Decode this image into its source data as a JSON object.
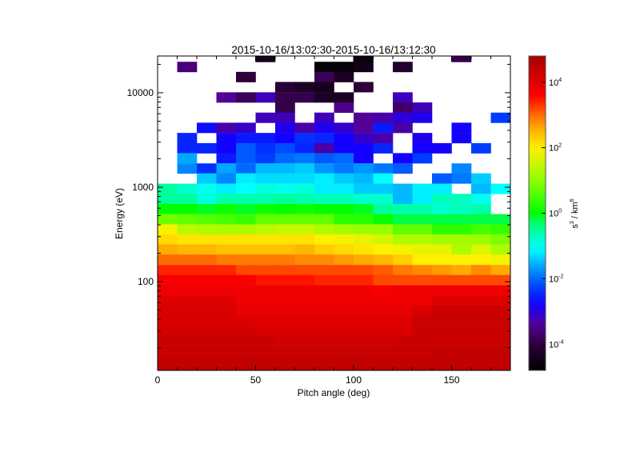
{
  "chart_data": {
    "type": "heatmap",
    "title": "2015-10-16/13:02:30-2015-10-16/13:12:30",
    "xlabel": "Pitch angle (deg)",
    "ylabel": "Energy (eV)",
    "xlim": [
      0,
      180
    ],
    "ylim": [
      11.5,
      24500
    ],
    "yscale": "log",
    "x_ticks": [
      "0",
      "50",
      "100",
      "150"
    ],
    "y_ticks": [
      "100",
      "1000",
      "10000"
    ],
    "pitch_angle_bins_deg": [
      5,
      15,
      25,
      35,
      45,
      55,
      65,
      75,
      85,
      95,
      105,
      115,
      125,
      135,
      145,
      155,
      165,
      175
    ],
    "energy_bins_eV": [
      24000,
      18800,
      14700,
      11500,
      8940,
      6980,
      5450,
      4260,
      3320,
      2590,
      2030,
      1580,
      1240,
      964,
      753,
      588,
      459,
      358,
      280,
      219,
      171,
      133,
      104,
      81,
      63.4,
      49.5,
      38.7,
      30.2,
      23.6,
      18.4,
      14.4,
      11.2
    ],
    "colorbar": {
      "label_base": "s",
      "label_exp1": "3",
      "label_mid": " / km",
      "label_exp2": "6",
      "scale": "log",
      "range_log10": [
        -4.8,
        4.8
      ],
      "ticks": [
        {
          "base": "10",
          "exp": "4",
          "log10": 4
        },
        {
          "base": "10",
          "exp": "2",
          "log10": 2
        },
        {
          "base": "10",
          "exp": "0",
          "log10": 0
        },
        {
          "base": "10",
          "exp": "-2",
          "log10": -2
        },
        {
          "base": "10",
          "exp": "-4",
          "log10": -4
        }
      ],
      "colormap": "rainbow (black-purple-blue-cyan-green-yellow-red-darkred)"
    },
    "empty_color": "#ffffff",
    "values_log10": [
      [
        null,
        null,
        null,
        null,
        null,
        -4.4,
        null,
        null,
        null,
        null,
        -4.6,
        null,
        null,
        null,
        null,
        -3.9,
        null,
        null
      ],
      [
        null,
        -3.6,
        null,
        null,
        null,
        null,
        null,
        null,
        -4.7,
        -4.7,
        -4.5,
        null,
        -4.2,
        null,
        null,
        null,
        null,
        null
      ],
      [
        null,
        null,
        null,
        null,
        -4.0,
        null,
        null,
        null,
        -3.8,
        -4.3,
        null,
        null,
        null,
        null,
        null,
        null,
        null,
        null
      ],
      [
        null,
        null,
        null,
        null,
        null,
        null,
        -4.1,
        -4.3,
        -4.4,
        null,
        -4.0,
        null,
        null,
        null,
        null,
        null,
        null,
        null
      ],
      [
        null,
        null,
        null,
        -3.4,
        -3.8,
        -3.2,
        -3.9,
        -3.9,
        -4.3,
        -4.3,
        null,
        null,
        -3.2,
        null,
        null,
        null,
        null,
        null
      ],
      [
        null,
        null,
        null,
        null,
        null,
        null,
        -3.9,
        null,
        null,
        -3.5,
        null,
        null,
        -3.7,
        -3.2,
        null,
        null,
        null,
        null
      ],
      [
        null,
        null,
        null,
        null,
        null,
        -3.2,
        -3.2,
        null,
        -3.2,
        null,
        -3.4,
        -3.3,
        -3.0,
        -2.9,
        null,
        null,
        null,
        -2.3
      ],
      [
        null,
        null,
        -2.7,
        -3.3,
        -3.1,
        null,
        -2.9,
        -3.3,
        -2.9,
        -3.1,
        -3.4,
        -2.6,
        -3.3,
        null,
        null,
        -2.8,
        null,
        null
      ],
      [
        null,
        -2.5,
        null,
        -2.8,
        -2.6,
        -2.6,
        -2.8,
        -2.4,
        -2.5,
        -2.8,
        -3.1,
        -3.3,
        null,
        -2.9,
        null,
        -2.8,
        null,
        null
      ],
      [
        null,
        -2.5,
        -2.5,
        -2.8,
        -2.1,
        -2.4,
        -2.2,
        -2.5,
        -3.3,
        -2.8,
        -2.8,
        -2.5,
        null,
        -2.8,
        -2.8,
        null,
        -2.3,
        null
      ],
      [
        null,
        -1.6,
        null,
        -2.6,
        -2.1,
        -2.3,
        -2.0,
        -1.9,
        -2.1,
        -2.0,
        -2.8,
        null,
        -2.8,
        -2.3,
        null,
        null,
        null,
        null
      ],
      [
        null,
        -1.8,
        -2.4,
        -1.6,
        -2.0,
        -1.5,
        -1.5,
        -1.4,
        -1.7,
        -1.9,
        -1.7,
        -1.9,
        -2.1,
        null,
        null,
        -1.8,
        null,
        null
      ],
      [
        null,
        null,
        -1.4,
        -1.8,
        -1.2,
        -1.3,
        -1.3,
        -1.3,
        -1.2,
        -1.4,
        -1.5,
        -1.1,
        null,
        null,
        -2.1,
        -1.9,
        -1.4,
        null
      ],
      [
        -0.5,
        -0.8,
        -1.0,
        -1.2,
        -1.1,
        -0.9,
        -1.0,
        -0.9,
        -1.2,
        -1.2,
        -1.4,
        -1.4,
        -1.5,
        -1.2,
        -1.2,
        null,
        -1.5,
        -1.1
      ],
      [
        -0.5,
        -0.5,
        -0.9,
        -0.6,
        -0.6,
        -0.6,
        -0.5,
        -0.6,
        -0.7,
        -0.7,
        -0.8,
        -0.8,
        -1.5,
        -1.2,
        -0.7,
        -0.7,
        -1.0,
        null
      ],
      [
        0.0,
        0.0,
        -0.1,
        0.1,
        -0.1,
        0.1,
        0.0,
        0.1,
        0.0,
        0.0,
        -0.1,
        -0.5,
        -0.6,
        -0.6,
        -0.8,
        -0.7,
        -0.6,
        null
      ],
      [
        0.8,
        0.7,
        0.6,
        0.5,
        0.4,
        0.7,
        0.7,
        0.7,
        0.7,
        0.3,
        0.3,
        0.05,
        -0.2,
        -0.2,
        -0.2,
        -0.2,
        -0.2,
        -0.2
      ],
      [
        1.9,
        1.4,
        1.3,
        1.3,
        1.3,
        1.4,
        1.5,
        1.5,
        1.3,
        1.2,
        1.1,
        1.1,
        0.7,
        0.7,
        0.3,
        0.3,
        0.5,
        0.4
      ],
      [
        2.2,
        2.1,
        2.1,
        2.1,
        2.1,
        2.1,
        2.1,
        2.1,
        2.0,
        1.9,
        1.8,
        1.6,
        1.3,
        1.3,
        1.2,
        1.2,
        1.1,
        0.9
      ],
      [
        2.6,
        2.5,
        2.5,
        2.4,
        2.4,
        2.4,
        2.4,
        2.5,
        2.3,
        2.2,
        2.1,
        2.0,
        1.9,
        1.8,
        1.8,
        1.3,
        1.7,
        1.3
      ],
      [
        3.0,
        3.0,
        3.0,
        2.9,
        2.9,
        2.9,
        2.9,
        2.8,
        2.8,
        2.7,
        2.6,
        2.5,
        2.3,
        2.0,
        2.0,
        2.0,
        2.0,
        1.9
      ],
      [
        3.4,
        3.4,
        3.4,
        3.4,
        3.2,
        3.2,
        3.2,
        3.2,
        3.2,
        3.2,
        3.2,
        3.1,
        2.9,
        2.8,
        2.7,
        2.6,
        2.8,
        2.6
      ],
      [
        3.7,
        3.7,
        3.7,
        3.7,
        3.7,
        3.5,
        3.5,
        3.5,
        3.4,
        3.4,
        3.4,
        3.2,
        3.2,
        3.2,
        3.2,
        3.2,
        3.2,
        3.2
      ],
      [
        3.8,
        3.8,
        3.8,
        3.8,
        3.8,
        3.8,
        3.8,
        3.8,
        3.8,
        3.8,
        3.8,
        3.7,
        3.8,
        3.8,
        3.8,
        3.8,
        3.8,
        3.8
      ],
      [
        4.0,
        4.0,
        4.0,
        4.0,
        3.8,
        3.8,
        3.8,
        3.8,
        3.8,
        3.8,
        3.8,
        3.8,
        3.8,
        3.8,
        4.0,
        4.0,
        4.0,
        4.0
      ],
      [
        4.1,
        4.1,
        4.1,
        4.1,
        3.9,
        3.9,
        3.9,
        3.9,
        3.9,
        3.9,
        3.9,
        3.9,
        3.9,
        4.1,
        4.3,
        4.3,
        4.3,
        4.3
      ],
      [
        4.1,
        4.1,
        4.1,
        4.1,
        4.1,
        4.0,
        4.0,
        4.0,
        4.0,
        4.0,
        4.0,
        4.0,
        4.0,
        4.3,
        4.3,
        4.3,
        4.3,
        4.3
      ],
      [
        4.2,
        4.2,
        4.2,
        4.2,
        4.2,
        4.1,
        4.1,
        4.1,
        4.1,
        4.1,
        4.1,
        4.1,
        4.1,
        4.3,
        4.3,
        4.3,
        4.3,
        4.3
      ],
      [
        4.3,
        4.3,
        4.3,
        4.3,
        4.3,
        4.3,
        4.2,
        4.2,
        4.2,
        4.2,
        4.2,
        4.2,
        4.3,
        4.3,
        4.3,
        4.3,
        4.3,
        4.3
      ],
      [
        4.35,
        4.35,
        4.35,
        4.35,
        4.35,
        4.35,
        4.35,
        4.35,
        4.35,
        4.35,
        4.35,
        4.35,
        4.35,
        4.35,
        4.4,
        4.4,
        4.4,
        4.4
      ],
      [
        4.4,
        4.4,
        4.4,
        4.4,
        4.4,
        4.4,
        4.4,
        4.4,
        4.4,
        4.4,
        4.4,
        4.4,
        4.4,
        4.4,
        4.4,
        4.4,
        4.4,
        4.4
      ],
      [
        4.5,
        4.5,
        4.5,
        4.5,
        4.5,
        4.5,
        4.5,
        4.5,
        4.5,
        4.5,
        4.5,
        4.5,
        4.5,
        4.5,
        4.5,
        4.5,
        4.5,
        4.5
      ]
    ]
  }
}
